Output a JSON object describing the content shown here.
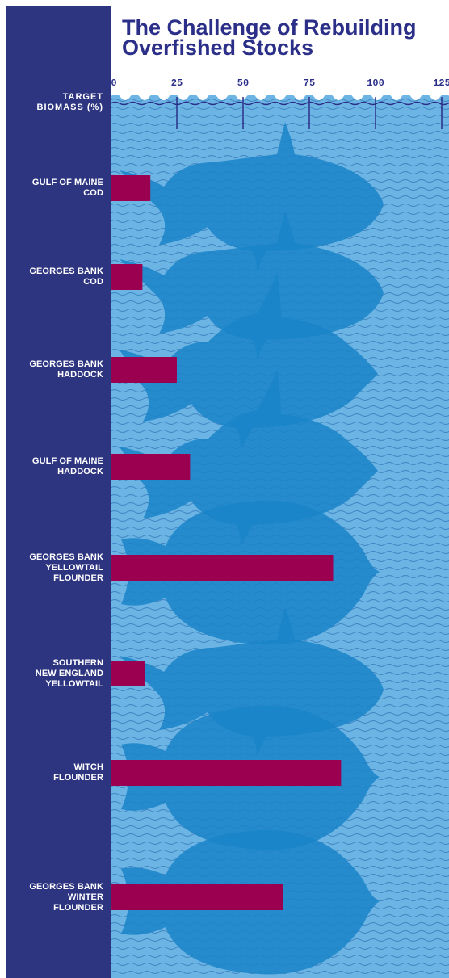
{
  "chart_data": {
    "type": "bar",
    "title": "The Challenge of Rebuilding Overfished Stocks",
    "xlabel": "TARGET BIOMASS (%)",
    "xlim": [
      0,
      125
    ],
    "ticks": [
      "0",
      "25",
      "50",
      "75",
      "100",
      "125"
    ],
    "categories": [
      "GULF OF MAINE COD",
      "GEORGES BANK COD",
      "GEORGES BANK HADDOCK",
      "GULF OF MAINE HADDOCK",
      "GEORGES BANK YELLOWTAIL FLOUNDER",
      "SOUTHERN NEW ENGLAND YELLOWTAIL",
      "WITCH FLOUNDER",
      "GEORGES BANK WINTER FLOUNDER"
    ],
    "label_lines": [
      [
        "GULF OF MAINE",
        "COD"
      ],
      [
        "GEORGES BANK",
        "COD"
      ],
      [
        "GEORGES BANK",
        "HADDOCK"
      ],
      [
        "GULF OF MAINE",
        "HADDOCK"
      ],
      [
        "GEORGES BANK",
        "YELLOWTAIL",
        "FLOUNDER"
      ],
      [
        "SOUTHERN",
        "NEW ENGLAND",
        "YELLOWTAIL"
      ],
      [
        "WITCH",
        "FLOUNDER"
      ],
      [
        "GEORGES BANK",
        "WINTER",
        "FLOUNDER"
      ]
    ],
    "values": [
      15,
      12,
      25,
      30,
      84,
      13,
      87,
      65
    ],
    "fish_shapes": [
      "cod",
      "cod",
      "haddock",
      "haddock",
      "flounder",
      "cod",
      "flounder",
      "flounder"
    ],
    "colors": {
      "sidebar": "#2e3580",
      "sea": "#6cb4e4",
      "wave": "#1b5fa6",
      "fish": "#1a84c8",
      "bar": "#9b0050",
      "title": "#2b2f88",
      "axis": "#2b2f88"
    }
  }
}
